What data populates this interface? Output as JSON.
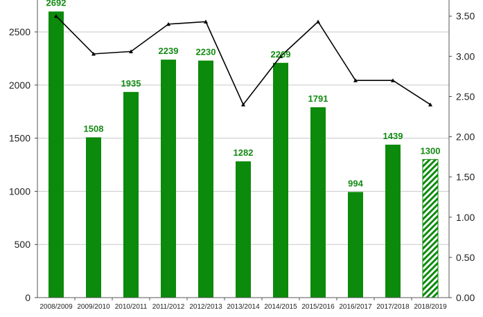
{
  "chart_data": {
    "type": "bar",
    "categories": [
      "2008/2009",
      "2009/2010",
      "2010/2011",
      "2011/2012",
      "2012/2013",
      "2013/2014",
      "2014/2015",
      "2015/2016",
      "2016/2017",
      "2017/2018",
      "2018/2019"
    ],
    "series": [
      {
        "type": "bar",
        "axis": "left",
        "values": [
          2692,
          1508,
          1935,
          2239,
          2230,
          1282,
          2209,
          1791,
          994,
          1439,
          1300
        ],
        "data_labels": [
          "2692",
          "1508",
          "1935",
          "2239",
          "2230",
          "1282",
          "2209",
          "1791",
          "994",
          "1439",
          "1300"
        ],
        "color": "#0b8a0b",
        "last_bar_hatched": true
      },
      {
        "type": "line",
        "axis": "right",
        "values": [
          3.5,
          3.03,
          3.06,
          3.4,
          3.43,
          2.4,
          3.0,
          3.43,
          2.7,
          2.7,
          2.4
        ],
        "color": "#000000"
      }
    ],
    "y_left": {
      "lim": [
        0,
        2800
      ],
      "ticks": [
        0,
        500,
        1000,
        1500,
        2000,
        2500
      ],
      "tick_labels": [
        "0",
        "500",
        "1000",
        "1500",
        "2000",
        "2500"
      ]
    },
    "y_right": {
      "lim": [
        0,
        3.7
      ],
      "ticks": [
        0,
        0.5,
        1,
        1.5,
        2,
        2.5,
        3,
        3.5
      ],
      "tick_labels": [
        "0.00",
        "0.50",
        "1.00",
        "1.50",
        "2.00",
        "2.50",
        "3.00",
        "3.50"
      ]
    },
    "grid": true,
    "legend": "none"
  }
}
